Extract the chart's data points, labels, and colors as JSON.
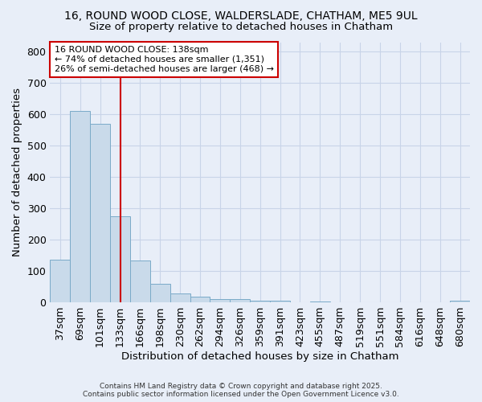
{
  "title_line1": "16, ROUND WOOD CLOSE, WALDERSLADE, CHATHAM, ME5 9UL",
  "title_line2": "Size of property relative to detached houses in Chatham",
  "xlabel": "Distribution of detached houses by size in Chatham",
  "ylabel": "Number of detached properties",
  "categories": [
    "37sqm",
    "69sqm",
    "101sqm",
    "133sqm",
    "166sqm",
    "198sqm",
    "230sqm",
    "262sqm",
    "294sqm",
    "326sqm",
    "359sqm",
    "391sqm",
    "423sqm",
    "455sqm",
    "487sqm",
    "519sqm",
    "551sqm",
    "584sqm",
    "616sqm",
    "648sqm",
    "680sqm"
  ],
  "values": [
    135,
    610,
    570,
    275,
    133,
    58,
    28,
    17,
    10,
    10,
    6,
    6,
    0,
    2,
    0,
    0,
    0,
    0,
    0,
    0,
    5
  ],
  "bar_color": "#c9daea",
  "bar_edge_color": "#7aaac8",
  "vline_pos": 3,
  "vline_color": "#cc0000",
  "annotation_text": "16 ROUND WOOD CLOSE: 138sqm\n← 74% of detached houses are smaller (1,351)\n26% of semi-detached houses are larger (468) →",
  "annotation_box_facecolor": "#ffffff",
  "annotation_box_edgecolor": "#cc0000",
  "ylim": [
    0,
    830
  ],
  "yticks": [
    0,
    100,
    200,
    300,
    400,
    500,
    600,
    700,
    800
  ],
  "grid_color": "#c8d4e8",
  "background_color": "#e8eef8",
  "footnote": "Contains HM Land Registry data © Crown copyright and database right 2025.\nContains public sector information licensed under the Open Government Licence v3.0."
}
